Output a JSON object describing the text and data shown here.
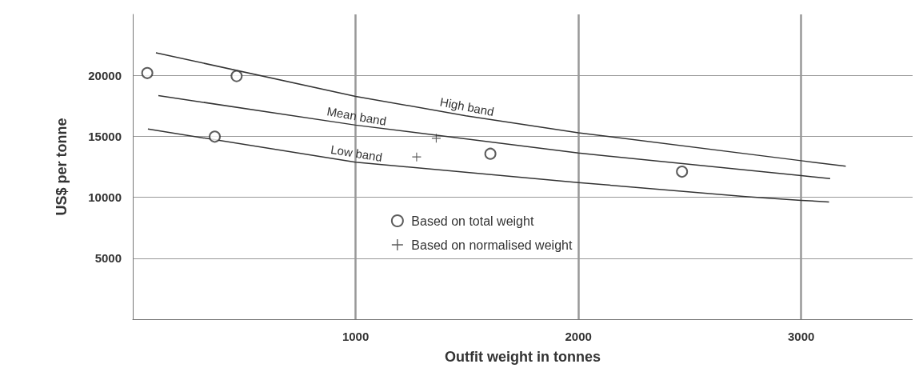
{
  "chart_data": {
    "type": "scatter",
    "xlabel": "Outfit weight in tonnes",
    "ylabel": "US$ per tonne",
    "xlim": [
      0,
      3500
    ],
    "xticks": [
      1000,
      2000,
      3000
    ],
    "ylim": [
      0,
      25000
    ],
    "yticks": [
      5000,
      10000,
      15000,
      20000
    ],
    "grid": true,
    "legend": "bottom",
    "series": [
      {
        "type": "line",
        "name": "High band",
        "color": "#333333",
        "marker": "none",
        "x": [
          104,
          1000,
          1495,
          2000,
          3000,
          3200
        ],
        "values": [
          21850,
          18280,
          16690,
          15290,
          13000,
          12550
        ]
      },
      {
        "type": "line",
        "name": "Mean band",
        "color": "#333333",
        "marker": "none",
        "x": [
          115,
          1000,
          2000,
          3000,
          3130
        ],
        "values": [
          18340,
          15920,
          13630,
          11780,
          11530
        ]
      },
      {
        "type": "line",
        "name": "Low band",
        "color": "#333333",
        "marker": "none",
        "x": [
          68,
          1000,
          2000,
          2750,
          3000,
          3125
        ],
        "values": [
          15600,
          12870,
          11210,
          10060,
          9750,
          9620
        ]
      },
      {
        "type": "scatter",
        "name": "Based on total weight",
        "color": "#333333",
        "marker": "circle",
        "x": [
          65,
          466,
          368,
          1605,
          2465
        ],
        "values": [
          20190,
          19940,
          14970,
          13570,
          12100
        ]
      },
      {
        "type": "scatter",
        "name": "Based on normalised weight",
        "color": "#333333",
        "marker": "cross",
        "x": [
          1362,
          1274
        ],
        "values": [
          14840,
          13310
        ]
      }
    ]
  }
}
